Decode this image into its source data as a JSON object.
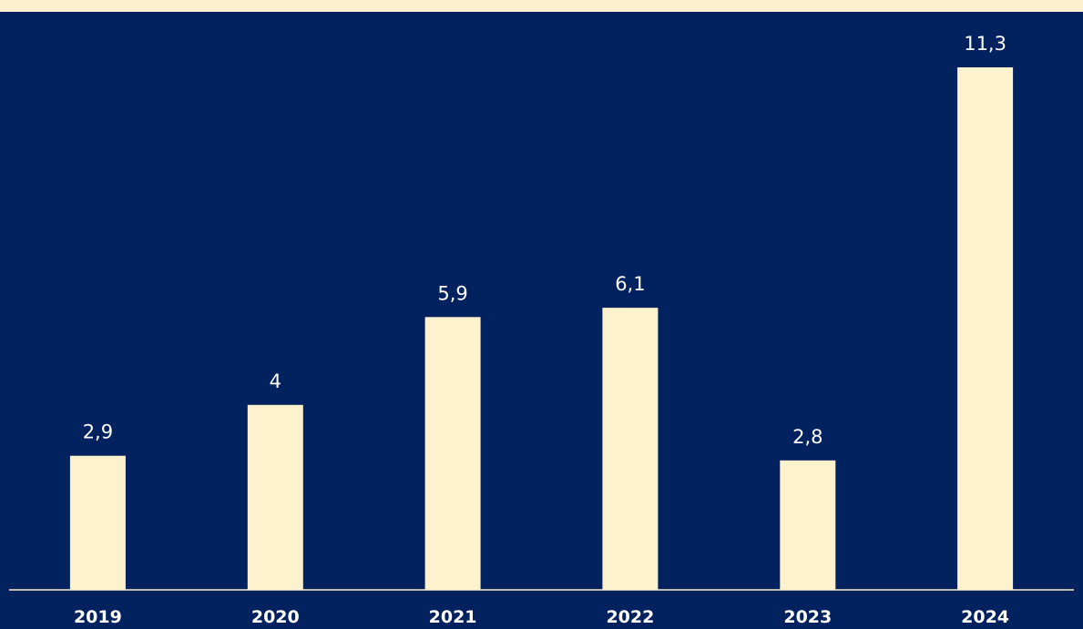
{
  "colors": {
    "frame_background": "#FDF0CE",
    "plot_background": "#01215F",
    "bar": "#FEF1CE",
    "label_text": "#FFFFFF"
  },
  "chart_data": {
    "type": "bar",
    "categories": [
      "2019",
      "2020",
      "2021",
      "2022",
      "2023",
      "2024"
    ],
    "values": [
      2.9,
      4,
      5.9,
      6.1,
      2.8,
      11.3
    ],
    "value_labels": [
      "2,9",
      "4",
      "5,9",
      "6,1",
      "2,8",
      "11,3"
    ],
    "title": "",
    "xlabel": "",
    "ylabel": "",
    "ylim": [
      0,
      11.3
    ],
    "grid": false,
    "legend": "none"
  }
}
